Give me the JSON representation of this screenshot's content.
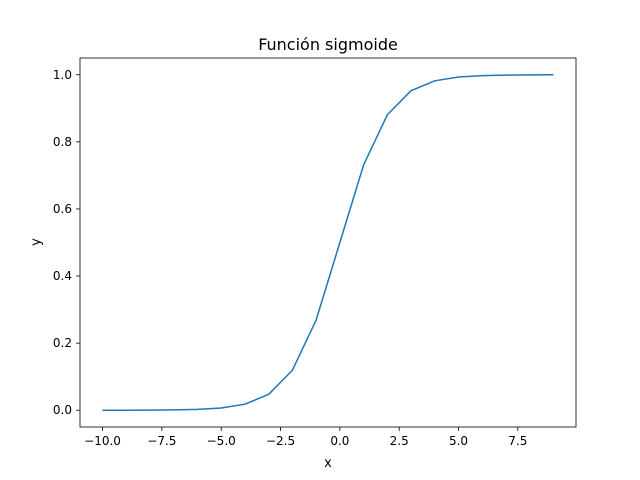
{
  "chart_data": {
    "type": "line",
    "title": "Función sigmoide",
    "xlabel": "x",
    "ylabel": "y",
    "xlim": [
      -10.95,
      9.95
    ],
    "ylim": [
      -0.05,
      1.05
    ],
    "grid": false,
    "x_ticks": [
      -10.0,
      -7.5,
      -5.0,
      -2.5,
      0.0,
      2.5,
      5.0,
      7.5
    ],
    "x_tick_labels": [
      "−10.0",
      "−7.5",
      "−5.0",
      "−2.5",
      "0.0",
      "2.5",
      "5.0",
      "7.5"
    ],
    "y_ticks": [
      0.0,
      0.2,
      0.4,
      0.6,
      0.8,
      1.0
    ],
    "y_tick_labels": [
      "0.0",
      "0.2",
      "0.4",
      "0.6",
      "0.8",
      "1.0"
    ],
    "series": [
      {
        "color": "#1f77b4",
        "x": [
          -10,
          -9,
          -8,
          -7,
          -6,
          -5,
          -4,
          -3,
          -2,
          -1,
          0,
          1,
          2,
          3,
          4,
          5,
          6,
          7,
          8,
          9
        ],
        "y": [
          4.54e-05,
          0.0001234,
          0.0003354,
          0.000911,
          0.002473,
          0.006693,
          0.017986,
          0.047426,
          0.119203,
          0.268941,
          0.5,
          0.731059,
          0.880797,
          0.952574,
          0.982014,
          0.993307,
          0.997527,
          0.999089,
          0.999665,
          0.999877
        ]
      }
    ]
  }
}
